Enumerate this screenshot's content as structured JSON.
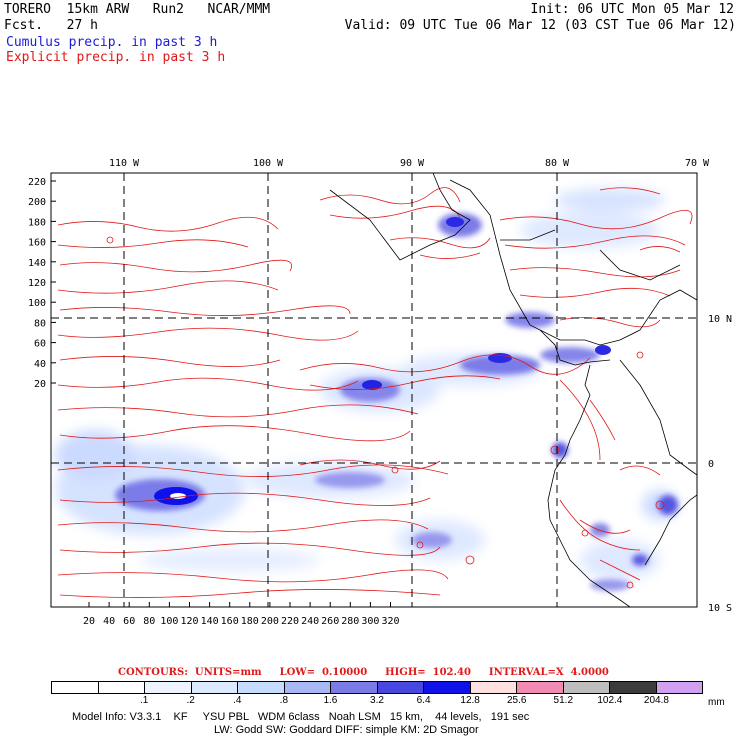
{
  "header": {
    "model": "TORERO  15km ARW   Run2   NCAR/MMM",
    "fcst": "Fcst.   27 h",
    "init": "Init: 06 UTC Mon 05 Mar 12",
    "valid": "Valid: 09 UTC Tue 06 Mar 12 (03 CST Tue 06 Mar 12)",
    "cumulus": "Cumulus precip. in past 3 h",
    "explicit": "Explicit precip. in past 3 h"
  },
  "map": {
    "top_lon_labels": [
      "110 W",
      "100 W",
      "90 W",
      "80 W",
      "70 W"
    ],
    "left_ticks": [
      "220",
      "200",
      "180",
      "160",
      "140",
      "120",
      "100",
      "80",
      "60",
      "40",
      "20"
    ],
    "bottom_ticks": [
      "20",
      "40",
      "60",
      "80",
      "100",
      "120",
      "140",
      "160",
      "180",
      "200",
      "220",
      "240",
      "260",
      "280",
      "300",
      "320"
    ],
    "right_lat_labels": [
      "10 N",
      "0",
      "10 S"
    ]
  },
  "contour_info": {
    "contours": "CONTOURS:  UNITS=mm",
    "low": "LOW=  0.10000",
    "high": "HIGH=  102.40",
    "interval": "INTERVAL=X  4.0000"
  },
  "legend": {
    "colors": [
      "#ffffff",
      "#ffffff",
      "#eef4ff",
      "#dde9ff",
      "#c6dcff",
      "#a8b8f5",
      "#7b7be8",
      "#4848e0",
      "#1010e8",
      "#ffe0e0",
      "#f08cb4",
      "#bebebe",
      "#3c3c3c",
      "#d2a0f0"
    ],
    "labels": [
      ".1",
      ".2",
      ".4",
      ".8",
      "1.6",
      "3.2",
      "6.4",
      "12.8",
      "25.6",
      "51.2",
      "102.4",
      "204.8"
    ],
    "unit": "mm"
  },
  "model_info": {
    "line1": "Model Info: V3.3.1    KF     YSU PBL   WDM 6class   Noah LSM   15 km,    44 levels,   191 sec",
    "line2": "LW: Godd SW: Goddard DIFF: simple KM: 2D Smagor"
  }
}
